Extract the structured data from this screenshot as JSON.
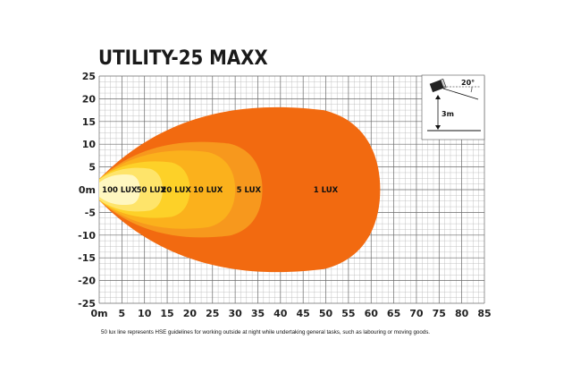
{
  "chart_data": {
    "type": "beam-pattern",
    "title": "UTILITY-25 MAXX",
    "x_ticks": [
      "0m",
      "5",
      "10",
      "15",
      "20",
      "25",
      "30",
      "35",
      "40",
      "45",
      "50",
      "55",
      "60",
      "65",
      "70",
      "75",
      "80",
      "85"
    ],
    "y_ticks": [
      "25",
      "20",
      "15",
      "10",
      "5",
      "0m",
      "-5",
      "-10",
      "-15",
      "-20",
      "-25"
    ],
    "xlim": [
      0,
      85
    ],
    "ylim": [
      -25,
      25
    ],
    "grid": true,
    "zones": [
      {
        "label": "1 LUX",
        "reach": 62,
        "half_width": 19,
        "color": "#f26a10"
      },
      {
        "label": "5 LUX",
        "reach": 36,
        "half_width": 11,
        "color": "#f7981d"
      },
      {
        "label": "10 LUX",
        "reach": 30,
        "half_width": 9,
        "color": "#fbb11c"
      },
      {
        "label": "20 LUX",
        "reach": 20,
        "half_width": 6.5,
        "color": "#fdd128"
      },
      {
        "label": "50 LUX",
        "reach": 14,
        "half_width": 5,
        "color": "#fee46a"
      },
      {
        "label": "100 LUX",
        "reach": 9,
        "half_width": 3.5,
        "color": "#fff7c0"
      }
    ],
    "label_positions_x": [
      50,
      33,
      24,
      17,
      11.5,
      4.5
    ],
    "footnote": "50 lux line represents HSE guidelines for working outside at night while undertaking general tasks, such as labouring or moving goods.",
    "inset": {
      "angle_label": "20°",
      "height_label": "3m"
    }
  }
}
